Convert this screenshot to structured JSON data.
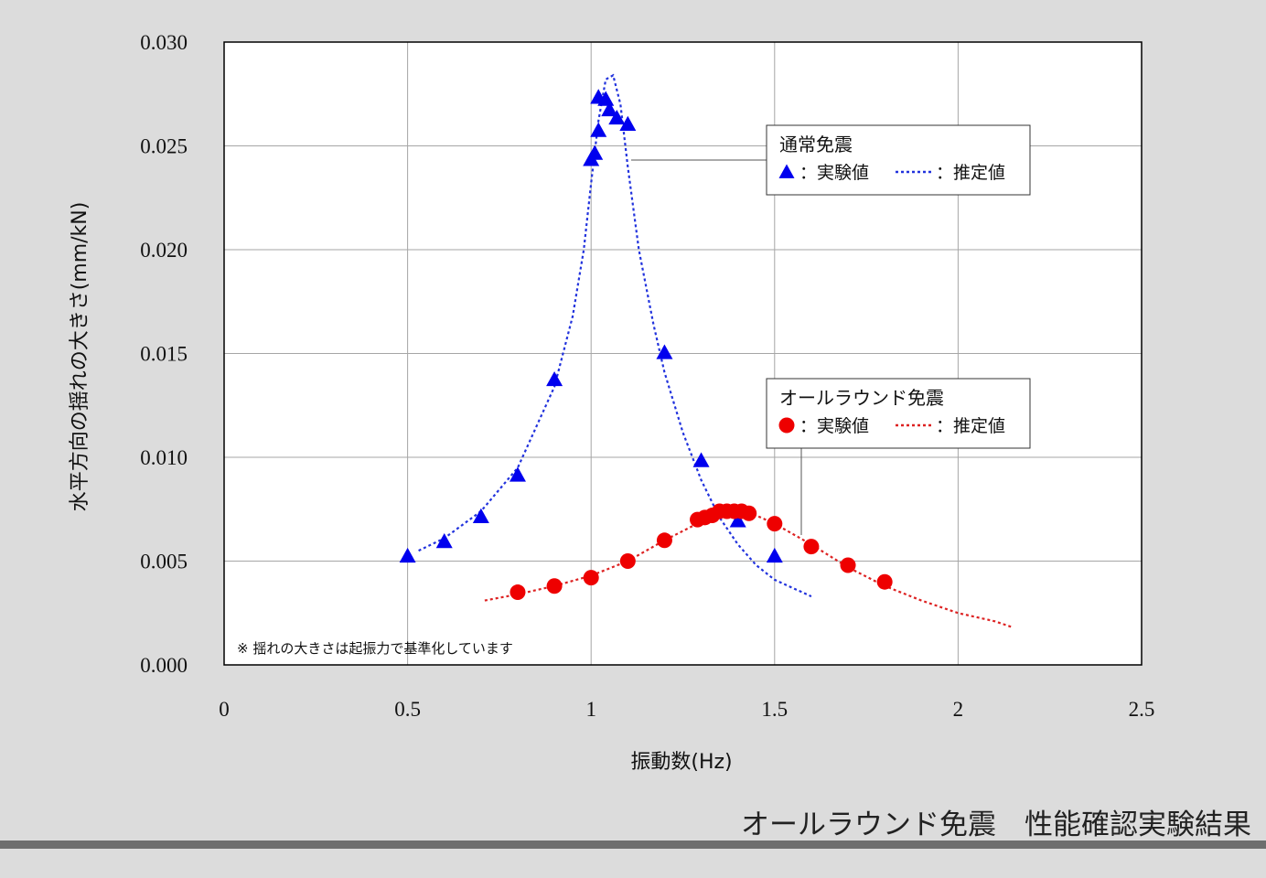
{
  "chart_data": {
    "type": "scatter",
    "xlabel": "振動数(Hz)",
    "ylabel": "水平方向の揺れの大きさ(mm/kN)",
    "xlim": [
      0,
      2.5
    ],
    "ylim": [
      0,
      0.03
    ],
    "xticks": [
      "0",
      "0.5",
      "1",
      "1.5",
      "2",
      "2.5"
    ],
    "yticks": [
      "0.000",
      "0.005",
      "0.010",
      "0.015",
      "0.020",
      "0.025",
      "0.030"
    ],
    "grid": true,
    "note": "※ 揺れの大きさは起振力で基準化しています",
    "series": [
      {
        "name": "通常免震",
        "kind": "measured",
        "marker": "triangle",
        "color": "#0000ee",
        "points": [
          [
            0.5,
            0.0052
          ],
          [
            0.6,
            0.0059
          ],
          [
            0.7,
            0.0071
          ],
          [
            0.8,
            0.0091
          ],
          [
            0.9,
            0.0137
          ],
          [
            1.0,
            0.0243
          ],
          [
            1.01,
            0.0246
          ],
          [
            1.02,
            0.0257
          ],
          [
            1.02,
            0.0273
          ],
          [
            1.04,
            0.0272
          ],
          [
            1.05,
            0.0267
          ],
          [
            1.07,
            0.0263
          ],
          [
            1.1,
            0.026
          ],
          [
            1.2,
            0.015
          ],
          [
            1.3,
            0.0098
          ],
          [
            1.4,
            0.0069
          ],
          [
            1.5,
            0.0052
          ]
        ]
      },
      {
        "name": "通常免震",
        "kind": "estimated",
        "line": "dotted",
        "color": "#2233dd",
        "points": [
          [
            0.53,
            0.0055
          ],
          [
            0.6,
            0.0061
          ],
          [
            0.7,
            0.0074
          ],
          [
            0.8,
            0.0095
          ],
          [
            0.9,
            0.0134
          ],
          [
            0.95,
            0.0168
          ],
          [
            0.98,
            0.02
          ],
          [
            1.0,
            0.0232
          ],
          [
            1.02,
            0.0262
          ],
          [
            1.04,
            0.0282
          ],
          [
            1.06,
            0.0284
          ],
          [
            1.08,
            0.027
          ],
          [
            1.1,
            0.024
          ],
          [
            1.13,
            0.02
          ],
          [
            1.17,
            0.0164
          ],
          [
            1.2,
            0.0141
          ],
          [
            1.25,
            0.0112
          ],
          [
            1.3,
            0.0089
          ],
          [
            1.35,
            0.0071
          ],
          [
            1.4,
            0.0058
          ],
          [
            1.45,
            0.0048
          ],
          [
            1.5,
            0.0041
          ],
          [
            1.55,
            0.0037
          ],
          [
            1.6,
            0.0033
          ]
        ]
      },
      {
        "name": "オールラウンド免震",
        "kind": "measured",
        "marker": "circle",
        "color": "#ee0000",
        "points": [
          [
            0.8,
            0.0035
          ],
          [
            0.9,
            0.0038
          ],
          [
            1.0,
            0.0042
          ],
          [
            1.1,
            0.005
          ],
          [
            1.2,
            0.006
          ],
          [
            1.29,
            0.007
          ],
          [
            1.31,
            0.0071
          ],
          [
            1.33,
            0.0072
          ],
          [
            1.35,
            0.0074
          ],
          [
            1.37,
            0.0074
          ],
          [
            1.39,
            0.0074
          ],
          [
            1.41,
            0.0074
          ],
          [
            1.43,
            0.0073
          ],
          [
            1.5,
            0.0068
          ],
          [
            1.6,
            0.0057
          ],
          [
            1.7,
            0.0048
          ],
          [
            1.8,
            0.004
          ]
        ]
      },
      {
        "name": "オールラウンド免震",
        "kind": "estimated",
        "line": "dotted",
        "color": "#dd2222",
        "points": [
          [
            0.71,
            0.0031
          ],
          [
            0.8,
            0.0034
          ],
          [
            0.9,
            0.0038
          ],
          [
            1.0,
            0.0043
          ],
          [
            1.1,
            0.005
          ],
          [
            1.2,
            0.006
          ],
          [
            1.3,
            0.0069
          ],
          [
            1.35,
            0.0072
          ],
          [
            1.4,
            0.0073
          ],
          [
            1.45,
            0.0072
          ],
          [
            1.5,
            0.0068
          ],
          [
            1.6,
            0.0058
          ],
          [
            1.7,
            0.0047
          ],
          [
            1.8,
            0.0038
          ],
          [
            1.9,
            0.0031
          ],
          [
            2.0,
            0.0025
          ],
          [
            2.1,
            0.0021
          ],
          [
            2.15,
            0.0018
          ]
        ]
      }
    ],
    "legends": [
      {
        "title": "通常免震",
        "measured_label": "：実験値",
        "estimated_label": "：推定値",
        "marker": "triangle",
        "color": "#0000ee",
        "line_color": "#2233dd"
      },
      {
        "title": "オールラウンド免震",
        "measured_label": "：実験値",
        "estimated_label": "：推定値",
        "marker": "circle",
        "color": "#ee0000",
        "line_color": "#dd2222"
      }
    ]
  },
  "caption": "オールラウンド免震　性能確認実験結果"
}
